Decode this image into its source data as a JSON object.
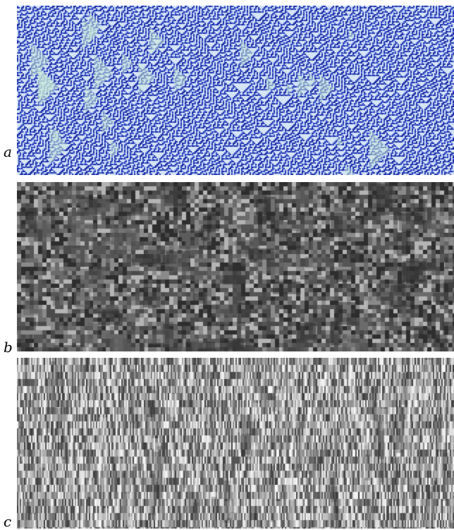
{
  "figure": {
    "panels": [
      {
        "label": "a",
        "style": "blue-sierpinski",
        "colors": {
          "dark": "#1c2fa8",
          "mid": "#4f6ad9",
          "light": "#d6e4f7",
          "tint": "#c8e8d8"
        }
      },
      {
        "label": "b",
        "style": "gray-blocks",
        "colors": {
          "dark": "#2e2e2e",
          "mid": "#6b6b6b",
          "light": "#b4b4b4"
        }
      },
      {
        "label": "c",
        "style": "gray-stripes",
        "colors": {
          "dark": "#3a3a3a",
          "mid": "#9a9a9a",
          "light": "#f2f2f2"
        }
      }
    ]
  }
}
